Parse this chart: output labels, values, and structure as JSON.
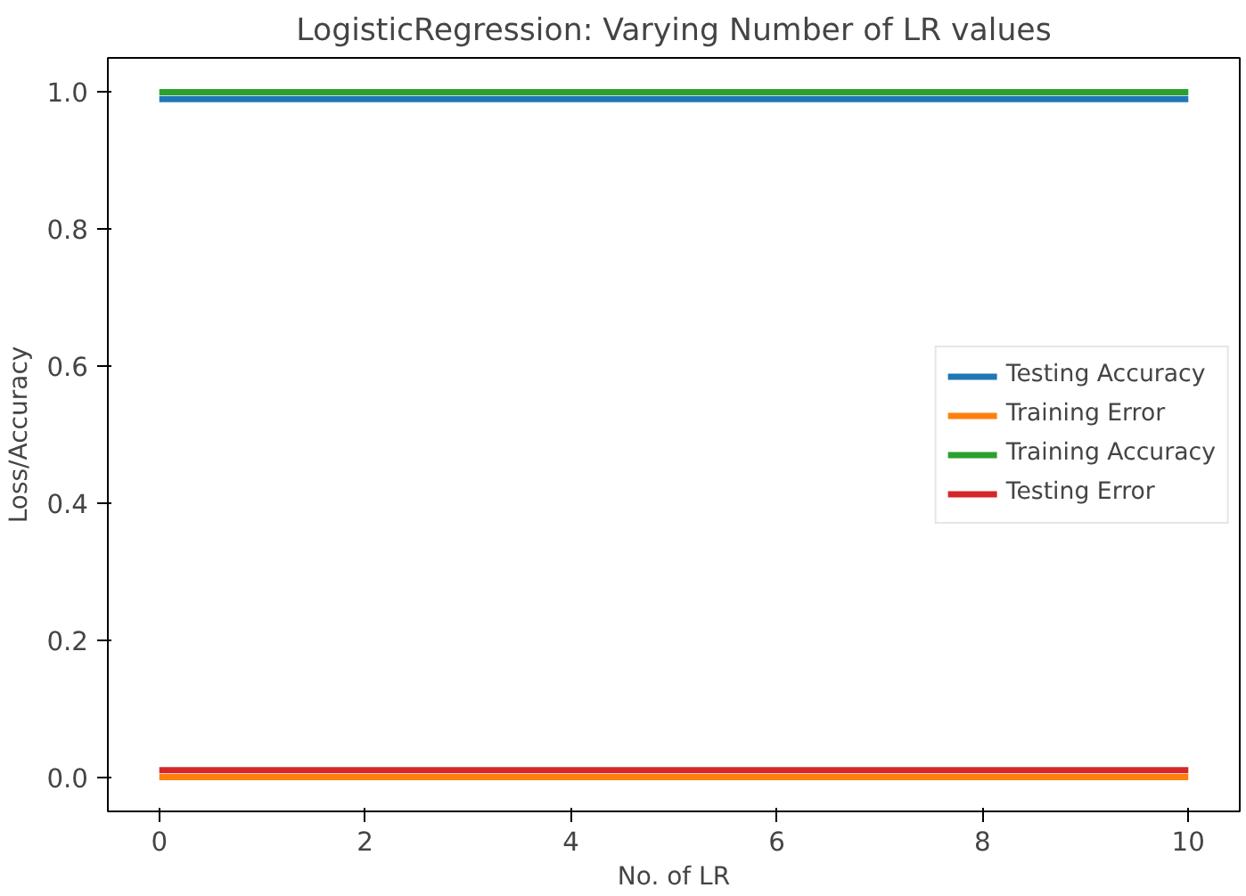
{
  "chart_data": {
    "type": "line",
    "title": "LogisticRegression: Varying Number of LR values",
    "xlabel": "No. of LR",
    "ylabel": "Loss/Accuracy",
    "x": [
      0,
      10
    ],
    "series": [
      {
        "name": "Testing Accuracy",
        "color": "#1f77b4",
        "values": [
          0.99,
          0.99
        ]
      },
      {
        "name": "Training Error",
        "color": "#ff7f0e",
        "values": [
          0.0,
          0.0
        ]
      },
      {
        "name": "Training Accuracy",
        "color": "#2ca02c",
        "values": [
          1.0,
          1.0
        ]
      },
      {
        "name": "Testing Error",
        "color": "#d62728",
        "values": [
          0.01,
          0.01
        ]
      }
    ],
    "xlim": [
      -0.5,
      10.5
    ],
    "ylim": [
      -0.05,
      1.05
    ],
    "xticks": [
      0,
      2,
      4,
      6,
      8,
      10
    ],
    "yticks": [
      {
        "value": 0,
        "label": "0.0"
      },
      {
        "value": 0.2,
        "label": "0.2"
      },
      {
        "value": 0.4,
        "label": "0.4"
      },
      {
        "value": 0.6,
        "label": "0.6"
      },
      {
        "value": 0.8,
        "label": "0.8"
      },
      {
        "value": 1.0,
        "label": "1.0"
      }
    ],
    "grid": false,
    "legend": "right",
    "marker": "none",
    "line_style": "solid"
  }
}
